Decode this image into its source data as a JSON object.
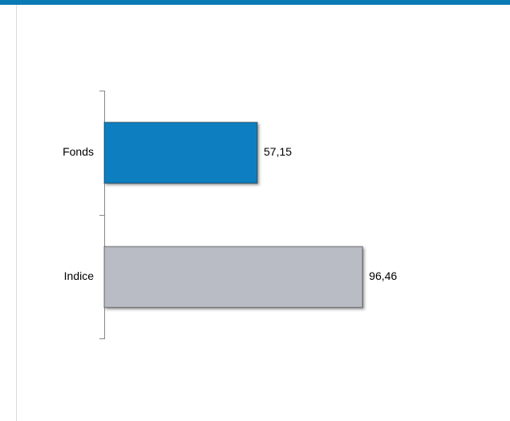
{
  "chart_data": {
    "type": "hbar",
    "categories": [
      "Fonds",
      "Indice"
    ],
    "values": [
      57.15,
      96.46
    ],
    "value_labels": [
      "57,15",
      "96,46"
    ],
    "colors": [
      "#0a7fc0",
      "#b9bcc4"
    ],
    "xlim": [
      0,
      150
    ]
  }
}
